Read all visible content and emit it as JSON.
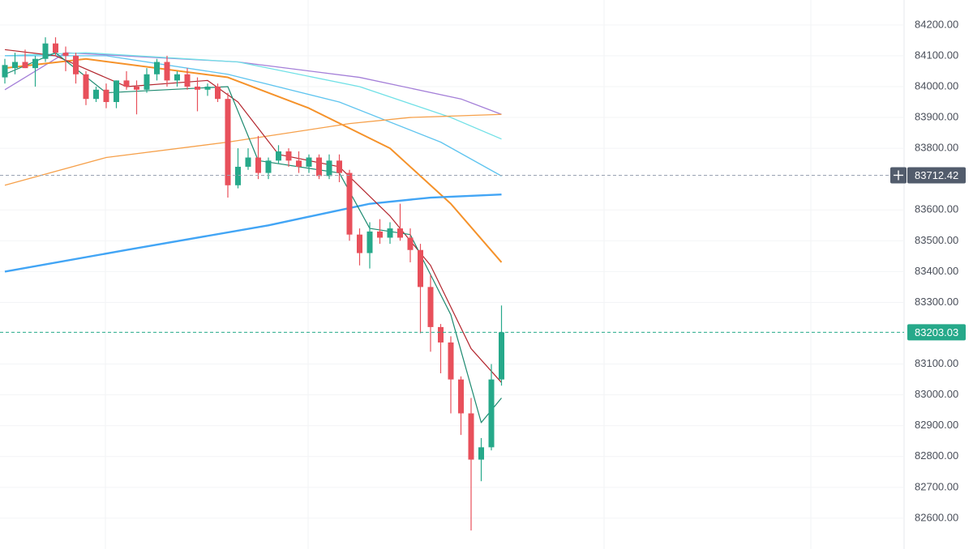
{
  "chart_data": {
    "type": "candlestick",
    "open": [
      84030,
      84060,
      84080,
      84060,
      84090,
      84140,
      84110,
      84100,
      84040,
      83960,
      83990,
      83950,
      84020,
      84000,
      83990,
      84040,
      84080,
      84020,
      84040,
      84000,
      83990,
      84000,
      83960,
      83680,
      83740,
      83770,
      83720,
      83760,
      83790,
      83760,
      83740,
      83770,
      83710,
      83760,
      83720,
      83520,
      83460,
      83530,
      83510,
      83540,
      83510,
      83470,
      83350,
      83220,
      83170,
      83050,
      82940,
      82790,
      82830,
      83050
    ],
    "high": [
      84090,
      84110,
      84120,
      84100,
      84160,
      84160,
      84130,
      84110,
      84050,
      84000,
      84010,
      84020,
      84050,
      84020,
      84060,
      84090,
      84100,
      84050,
      84060,
      84030,
      84010,
      84010,
      83980,
      83800,
      83800,
      83840,
      83770,
      83810,
      83800,
      83790,
      83780,
      83780,
      83780,
      83780,
      83730,
      83540,
      83560,
      83570,
      83560,
      83620,
      83540,
      83490,
      83390,
      83230,
      83190,
      83060,
      82990,
      82860,
      83100,
      83290
    ],
    "low": [
      84010,
      84040,
      84060,
      84000,
      84080,
      84100,
      84050,
      84010,
      83940,
      83950,
      83930,
      83930,
      83990,
      83910,
      83980,
      84020,
      84000,
      84000,
      83990,
      83920,
      83970,
      83950,
      83640,
      83670,
      83730,
      83700,
      83700,
      83750,
      83740,
      83720,
      83720,
      83700,
      83700,
      83690,
      83500,
      83420,
      83410,
      83490,
      83490,
      83500,
      83430,
      83200,
      83140,
      83070,
      82940,
      82870,
      82560,
      82720,
      82820,
      83030
    ],
    "close": [
      84070,
      84080,
      84060,
      84090,
      84140,
      84110,
      84100,
      84040,
      83960,
      83990,
      83950,
      84020,
      84000,
      83990,
      84040,
      84080,
      84020,
      84040,
      84000,
      83990,
      84000,
      83960,
      83680,
      83740,
      83770,
      83720,
      83760,
      83790,
      83760,
      83740,
      83770,
      83710,
      83760,
      83720,
      83520,
      83460,
      83530,
      83510,
      83540,
      83510,
      83470,
      83350,
      83220,
      83170,
      83050,
      82940,
      82790,
      82830,
      83050,
      83203.03
    ],
    "up_color": "#26a98a",
    "down_color": "#e8505b",
    "series": [
      {
        "color": "#a47fd8",
        "width": 1.3,
        "x": [
          0,
          6,
          23,
          35,
          45,
          49
        ],
        "values": [
          83990,
          84110,
          84080,
          84030,
          83960,
          83910
        ]
      },
      {
        "color": "#6fe0e6",
        "width": 1.3,
        "x": [
          0,
          8,
          23,
          35,
          44,
          49
        ],
        "values": [
          84100,
          84110,
          84080,
          84000,
          83900,
          83830
        ]
      },
      {
        "color": "#5ec4ef",
        "width": 1.3,
        "x": [
          0,
          10,
          22,
          33,
          43,
          49
        ],
        "values": [
          84100,
          84100,
          84040,
          83950,
          83820,
          83710
        ]
      },
      {
        "color": "#f5922a",
        "width": 2,
        "x": [
          0,
          8,
          22,
          30,
          38,
          44,
          49
        ],
        "values": [
          84060,
          84090,
          84030,
          83930,
          83800,
          83620,
          83430
        ]
      },
      {
        "color": "#f6a04a",
        "width": 1.3,
        "x": [
          0,
          10,
          22,
          34,
          40,
          49
        ],
        "values": [
          83680,
          83770,
          83820,
          83880,
          83900,
          83910
        ]
      },
      {
        "color": "#42a5f5",
        "width": 2.4,
        "x": [
          0,
          12,
          26,
          36,
          42,
          49
        ],
        "values": [
          83400,
          83470,
          83550,
          83620,
          83640,
          83650
        ]
      },
      {
        "color": "#b3262e",
        "width": 1.2,
        "x": [
          0,
          5,
          12,
          20,
          23,
          27,
          33,
          38,
          42,
          46,
          49
        ],
        "values": [
          84120,
          84100,
          84000,
          84020,
          83950,
          83780,
          83740,
          83580,
          83420,
          83150,
          83040
        ]
      },
      {
        "color": "#1d8a70",
        "width": 1.2,
        "x": [
          0,
          5,
          10,
          22,
          25,
          33,
          36,
          40,
          44,
          47,
          49
        ],
        "values": [
          84040,
          84110,
          83980,
          84000,
          83760,
          83720,
          83540,
          83520,
          83260,
          82910,
          82990
        ]
      }
    ],
    "price_lines": [
      {
        "value": 83712.42,
        "color": "#9aa3b2",
        "label_color": "#525c6c"
      },
      {
        "value": 83203.03,
        "color": "#26a98a",
        "label_color": "#26a98a"
      }
    ],
    "ylim": [
      82500,
      84281
    ],
    "yticks": [
      {
        "value": 84200,
        "label": "84200.00"
      },
      {
        "value": 84100,
        "label": "84100.00"
      },
      {
        "value": 84000,
        "label": "84000.00"
      },
      {
        "value": 83900,
        "label": "83900.00"
      },
      {
        "value": 83800,
        "label": "83800.00"
      },
      {
        "value": 83600,
        "label": "83600.00"
      },
      {
        "value": 83500,
        "label": "83500.00"
      },
      {
        "value": 83400,
        "label": "83400.00"
      },
      {
        "value": 83300,
        "label": "83300.00"
      },
      {
        "value": 83100,
        "label": "83100.00"
      },
      {
        "value": 83000,
        "label": "83000.00"
      },
      {
        "value": 82900,
        "label": "82900.00"
      },
      {
        "value": 82800,
        "label": "82800.00"
      },
      {
        "value": 82700,
        "label": "82700.00"
      },
      {
        "value": 82600,
        "label": "82600.00"
      }
    ],
    "grid": true
  }
}
